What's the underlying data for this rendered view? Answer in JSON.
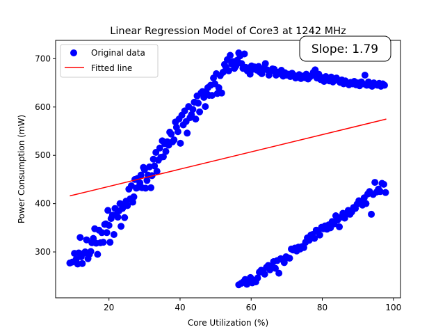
{
  "chart_data": {
    "type": "scatter",
    "title": "Linear Regression Model of Core3 at 1242 MHz",
    "xlabel": "Core Utilization (%)",
    "ylabel": "Power Consumption (mW)",
    "xlim": [
      5,
      102
    ],
    "ylim": [
      205,
      738
    ],
    "xticks": [
      20,
      40,
      60,
      80,
      100
    ],
    "yticks": [
      300,
      400,
      500,
      600,
      700
    ],
    "grid": false,
    "legend_position": "upper-left",
    "annotation": "Slope: 1.79",
    "annotation_position": "top-right",
    "series": [
      {
        "name": "Original data",
        "kind": "scatter",
        "color": "#0000ff",
        "points": [
          [
            9.0,
            277
          ],
          [
            9.7,
            279
          ],
          [
            10.3,
            297
          ],
          [
            10.8,
            285
          ],
          [
            11.2,
            275
          ],
          [
            11.5,
            298
          ],
          [
            11.9,
            330
          ],
          [
            12.2,
            290
          ],
          [
            12.5,
            276
          ],
          [
            12.9,
            297
          ],
          [
            13.3,
            300
          ],
          [
            13.7,
            325
          ],
          [
            14.1,
            286
          ],
          [
            14.5,
            295
          ],
          [
            14.9,
            301
          ],
          [
            15.2,
            319
          ],
          [
            15.6,
            328
          ],
          [
            16.0,
            348
          ],
          [
            16.4,
            318
          ],
          [
            16.8,
            295
          ],
          [
            17.2,
            345
          ],
          [
            17.6,
            319
          ],
          [
            18.0,
            340
          ],
          [
            18.4,
            320
          ],
          [
            18.8,
            357
          ],
          [
            19.1,
            358
          ],
          [
            19.4,
            340
          ],
          [
            19.7,
            386
          ],
          [
            20.0,
            355
          ],
          [
            20.3,
            320
          ],
          [
            20.6,
            369
          ],
          [
            21.0,
            376
          ],
          [
            21.4,
            336
          ],
          [
            21.7,
            390
          ],
          [
            22.1,
            377
          ],
          [
            22.5,
            372
          ],
          [
            22.8,
            385
          ],
          [
            23.1,
            400
          ],
          [
            23.4,
            353
          ],
          [
            23.8,
            390
          ],
          [
            24.1,
            394
          ],
          [
            24.4,
            371
          ],
          [
            24.8,
            405
          ],
          [
            25.2,
            396
          ],
          [
            25.6,
            430
          ],
          [
            26.0,
            410
          ],
          [
            26.3,
            437
          ],
          [
            26.7,
            403
          ],
          [
            27.0,
            414
          ],
          [
            27.3,
            450
          ],
          [
            27.7,
            432
          ],
          [
            28.0,
            452
          ],
          [
            28.3,
            434
          ],
          [
            28.7,
            443
          ],
          [
            29.0,
            459
          ],
          [
            29.3,
            433
          ],
          [
            29.7,
            475
          ],
          [
            30.0,
            470
          ],
          [
            30.3,
            432
          ],
          [
            30.7,
            448
          ],
          [
            31.0,
            459
          ],
          [
            31.4,
            476
          ],
          [
            31.8,
            433
          ],
          [
            32.1,
            458
          ],
          [
            32.5,
            492
          ],
          [
            32.8,
            478
          ],
          [
            33.2,
            506
          ],
          [
            33.5,
            467
          ],
          [
            33.9,
            490
          ],
          [
            34.3,
            515
          ],
          [
            34.6,
            496
          ],
          [
            35.0,
            530
          ],
          [
            35.3,
            497
          ],
          [
            35.7,
            524
          ],
          [
            36.0,
            508
          ],
          [
            36.4,
            528
          ],
          [
            36.8,
            521
          ],
          [
            37.1,
            548
          ],
          [
            37.5,
            544
          ],
          [
            37.9,
            528
          ],
          [
            38.3,
            532
          ],
          [
            38.7,
            569
          ],
          [
            39.0,
            558
          ],
          [
            39.4,
            549
          ],
          [
            39.7,
            575
          ],
          [
            40.1,
            525
          ],
          [
            40.5,
            583
          ],
          [
            40.9,
            563
          ],
          [
            41.3,
            592
          ],
          [
            41.7,
            570
          ],
          [
            42.0,
            546
          ],
          [
            42.4,
            601
          ],
          [
            42.8,
            578
          ],
          [
            43.2,
            584
          ],
          [
            43.6,
            595
          ],
          [
            44.0,
            610
          ],
          [
            44.4,
            575
          ],
          [
            44.8,
            623
          ],
          [
            45.1,
            608
          ],
          [
            45.5,
            590
          ],
          [
            45.9,
            629
          ],
          [
            46.3,
            632
          ],
          [
            46.7,
            620
          ],
          [
            47.1,
            601
          ],
          [
            47.5,
            628
          ],
          [
            47.8,
            640
          ],
          [
            48.2,
            624
          ],
          [
            48.6,
            645
          ],
          [
            49.0,
            624
          ],
          [
            49.4,
            660
          ],
          [
            49.8,
            648
          ],
          [
            50.2,
            669
          ],
          [
            50.5,
            628
          ],
          [
            50.9,
            640
          ],
          [
            51.3,
            665
          ],
          [
            51.7,
            629
          ],
          [
            52.1,
            672
          ],
          [
            52.5,
            688
          ],
          [
            52.9,
            682
          ],
          [
            53.3,
            698
          ],
          [
            53.7,
            675
          ],
          [
            54.1,
            707
          ],
          [
            54.5,
            689
          ],
          [
            54.9,
            694
          ],
          [
            55.3,
            680
          ],
          [
            55.7,
            685
          ],
          [
            56.1,
            697
          ],
          [
            56.5,
            712
          ],
          [
            56.9,
            706
          ],
          [
            57.3,
            690
          ],
          [
            57.7,
            680
          ],
          [
            58.1,
            710
          ],
          [
            58.5,
            682
          ],
          [
            58.9,
            675
          ],
          [
            59.3,
            681
          ],
          [
            59.7,
            668
          ],
          [
            60.1,
            685
          ],
          [
            60.5,
            678
          ],
          [
            60.9,
            683
          ],
          [
            61.3,
            680
          ],
          [
            61.7,
            676
          ],
          [
            62.1,
            684
          ],
          [
            62.5,
            672
          ],
          [
            63.0,
            669
          ],
          [
            63.5,
            680
          ],
          [
            64.0,
            690
          ],
          [
            64.5,
            677
          ],
          [
            65.0,
            666
          ],
          [
            65.5,
            674
          ],
          [
            66.0,
            679
          ],
          [
            66.5,
            678
          ],
          [
            67.0,
            666
          ],
          [
            67.5,
            672
          ],
          [
            68.0,
            669
          ],
          [
            68.5,
            676
          ],
          [
            69.0,
            664
          ],
          [
            69.5,
            671
          ],
          [
            70.0,
            666
          ],
          [
            70.5,
            668
          ],
          [
            71.0,
            663
          ],
          [
            71.5,
            670
          ],
          [
            72.0,
            666
          ],
          [
            72.5,
            660
          ],
          [
            73.0,
            662
          ],
          [
            73.5,
            667
          ],
          [
            74.0,
            659
          ],
          [
            74.5,
            664
          ],
          [
            75.0,
            661
          ],
          [
            75.5,
            668
          ],
          [
            76.0,
            658
          ],
          [
            76.5,
            662
          ],
          [
            77.0,
            665
          ],
          [
            77.5,
            672
          ],
          [
            78.0,
            677
          ],
          [
            78.5,
            660
          ],
          [
            79.0,
            668
          ],
          [
            79.5,
            657
          ],
          [
            80.0,
            661
          ],
          [
            80.5,
            653
          ],
          [
            81.0,
            663
          ],
          [
            81.5,
            658
          ],
          [
            82.0,
            654
          ],
          [
            82.5,
            662
          ],
          [
            83.0,
            652
          ],
          [
            83.5,
            658
          ],
          [
            84.0,
            660
          ],
          [
            84.5,
            655
          ],
          [
            85.0,
            651
          ],
          [
            85.5,
            656
          ],
          [
            86.0,
            648
          ],
          [
            86.5,
            654
          ],
          [
            87.0,
            650
          ],
          [
            87.5,
            646
          ],
          [
            88.0,
            651
          ],
          [
            88.5,
            648
          ],
          [
            89.0,
            653
          ],
          [
            89.5,
            646
          ],
          [
            90.0,
            650
          ],
          [
            90.5,
            644
          ],
          [
            91.0,
            652
          ],
          [
            91.5,
            648
          ],
          [
            92.0,
            666
          ],
          [
            92.5,
            645
          ],
          [
            93.0,
            652
          ],
          [
            93.5,
            645
          ],
          [
            94.0,
            643
          ],
          [
            94.5,
            650
          ],
          [
            95.0,
            647
          ],
          [
            95.5,
            645
          ],
          [
            96.0,
            649
          ],
          [
            96.5,
            643
          ],
          [
            97.0,
            648
          ],
          [
            97.5,
            645
          ],
          [
            56.5,
            232
          ],
          [
            57.2,
            235
          ],
          [
            57.8,
            238
          ],
          [
            58.3,
            243
          ],
          [
            58.8,
            233
          ],
          [
            59.3,
            240
          ],
          [
            59.8,
            247
          ],
          [
            60.3,
            236
          ],
          [
            60.8,
            241
          ],
          [
            61.3,
            238
          ],
          [
            61.8,
            246
          ],
          [
            62.3,
            258
          ],
          [
            62.8,
            262
          ],
          [
            63.3,
            260
          ],
          [
            63.8,
            254
          ],
          [
            64.3,
            268
          ],
          [
            64.8,
            272
          ],
          [
            65.3,
            263
          ],
          [
            65.8,
            270
          ],
          [
            66.3,
            280
          ],
          [
            66.8,
            266
          ],
          [
            67.3,
            282
          ],
          [
            67.8,
            256
          ],
          [
            68.3,
            286
          ],
          [
            68.8,
            284
          ],
          [
            69.3,
            278
          ],
          [
            69.8,
            290
          ],
          [
            70.3,
            288
          ],
          [
            70.8,
            287
          ],
          [
            71.3,
            306
          ],
          [
            71.8,
            304
          ],
          [
            72.3,
            308
          ],
          [
            72.8,
            302
          ],
          [
            73.3,
            310
          ],
          [
            73.8,
            306
          ],
          [
            74.3,
            311
          ],
          [
            74.8,
            309
          ],
          [
            75.3,
            320
          ],
          [
            75.8,
            329
          ],
          [
            76.3,
            324
          ],
          [
            76.8,
            335
          ],
          [
            77.3,
            336
          ],
          [
            77.8,
            328
          ],
          [
            78.3,
            345
          ],
          [
            78.8,
            342
          ],
          [
            79.3,
            335
          ],
          [
            79.8,
            351
          ],
          [
            80.3,
            348
          ],
          [
            80.8,
            354
          ],
          [
            81.3,
            347
          ],
          [
            81.8,
            356
          ],
          [
            82.3,
            350
          ],
          [
            82.8,
            363
          ],
          [
            83.3,
            358
          ],
          [
            83.8,
            375
          ],
          [
            84.3,
            366
          ],
          [
            84.8,
            352
          ],
          [
            85.3,
            372
          ],
          [
            85.8,
            380
          ],
          [
            86.3,
            370
          ],
          [
            86.8,
            378
          ],
          [
            87.3,
            386
          ],
          [
            87.8,
            378
          ],
          [
            88.3,
            383
          ],
          [
            88.8,
            392
          ],
          [
            89.3,
            390
          ],
          [
            89.8,
            399
          ],
          [
            90.3,
            406
          ],
          [
            90.8,
            402
          ],
          [
            91.3,
            397
          ],
          [
            91.8,
            412
          ],
          [
            92.3,
            400
          ],
          [
            92.8,
            420
          ],
          [
            93.3,
            425
          ],
          [
            93.8,
            378
          ],
          [
            94.3,
            419
          ],
          [
            94.8,
            444
          ],
          [
            95.3,
            424
          ],
          [
            95.8,
            430
          ],
          [
            96.3,
            425
          ],
          [
            96.8,
            442
          ],
          [
            97.3,
            440
          ],
          [
            97.8,
            423
          ]
        ]
      },
      {
        "name": "Fitted line",
        "kind": "line",
        "color": "#ff0000",
        "points": [
          [
            9.0,
            416
          ],
          [
            98.0,
            575
          ]
        ]
      }
    ]
  }
}
